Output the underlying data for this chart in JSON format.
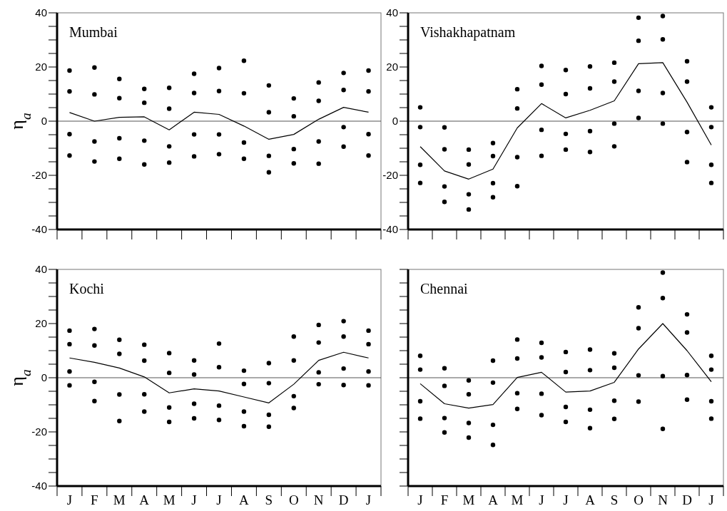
{
  "chart_data": [
    {
      "type": "line",
      "title": "Mumbai",
      "ylabel": "η$_{a}$",
      "tick_labels": "y",
      "categories": [
        null,
        null,
        null,
        null,
        null,
        null,
        null,
        null,
        null,
        null,
        null,
        null,
        null
      ],
      "ylim": [
        -40,
        40
      ],
      "yticks": [
        -40,
        {
          "value": -35,
          "label": null
        },
        {
          "value": -30,
          "label": null
        },
        {
          "value": -25,
          "label": null
        },
        -20,
        {
          "value": -15,
          "label": null
        },
        {
          "value": -10,
          "label": null
        },
        {
          "value": -5,
          "label": null
        },
        0,
        {
          "value": 5,
          "label": null
        },
        {
          "value": 10,
          "label": null
        },
        {
          "value": 15,
          "label": null
        },
        20,
        {
          "value": 25,
          "label": null
        },
        {
          "value": 30,
          "label": null
        },
        {
          "value": 35,
          "label": null
        },
        40
      ],
      "ref_lines": [
        {
          "axis": "y",
          "value": 0,
          "color": "#555555"
        }
      ],
      "series": [
        {
          "color": "#000000",
          "values": [
            3.2,
            0,
            1.4,
            1.6,
            -3.2,
            3.3,
            2.5,
            -1.8,
            -6.7,
            -4.9,
            0.7,
            5.1,
            3.3
          ]
        },
        {
          "type": "scatter",
          "color": "#000000",
          "marker": "circle",
          "values": [
            18.7,
            19.8,
            15.6,
            11.9,
            12.3,
            17.5,
            19.6,
            22.3,
            13.2,
            8.4,
            14.3,
            17.8,
            18.7
          ]
        },
        {
          "type": "scatter",
          "color": "#000000",
          "marker": "circle",
          "values": [
            11,
            9.9,
            8.5,
            6.8,
            4.6,
            10.4,
            11.1,
            10.3,
            3.3,
            1.8,
            7.5,
            11.5,
            11
          ]
        },
        {
          "type": "scatter",
          "color": "#000000",
          "marker": "circle",
          "values": [
            -4.8,
            -7.5,
            -6.3,
            -7.2,
            -9.3,
            -4.9,
            -4.9,
            -7.9,
            -12.8,
            -10.3,
            -7.5,
            -2.2,
            -4.8
          ]
        },
        {
          "type": "scatter",
          "color": "#000000",
          "marker": "circle",
          "values": [
            -12.7,
            -14.9,
            -13.9,
            -16,
            -15.3,
            -13,
            -12.2,
            -13.9,
            -18.9,
            -15.6,
            -15.7,
            -9.4,
            -12.7
          ]
        }
      ]
    },
    {
      "type": "line",
      "title": "Vishakhapatnam",
      "tick_labels": "y",
      "categories": [
        null,
        null,
        null,
        null,
        null,
        null,
        null,
        null,
        null,
        null,
        null,
        null,
        null
      ],
      "ylim": [
        -40,
        40
      ],
      "yticks": [
        -40,
        {
          "value": -35,
          "label": null
        },
        {
          "value": -30,
          "label": null
        },
        {
          "value": -25,
          "label": null
        },
        -20,
        {
          "value": -15,
          "label": null
        },
        {
          "value": -10,
          "label": null
        },
        {
          "value": -5,
          "label": null
        },
        0,
        {
          "value": 5,
          "label": null
        },
        {
          "value": 10,
          "label": null
        },
        {
          "value": 15,
          "label": null
        },
        20,
        {
          "value": 25,
          "label": null
        },
        {
          "value": 30,
          "label": null
        },
        {
          "value": 35,
          "label": null
        },
        40
      ],
      "ref_lines": [
        {
          "axis": "y",
          "value": 0,
          "color": "#555555"
        }
      ],
      "series": [
        {
          "color": "#000000",
          "values": [
            -9.4,
            -18.4,
            -21.4,
            -17.7,
            -2.5,
            6.5,
            1.2,
            4,
            7.5,
            21.2,
            21.6,
            7,
            -8.8
          ]
        },
        {
          "type": "scatter",
          "color": "#000000",
          "marker": "circle",
          "values": [
            5.1,
            -2.3,
            -10.5,
            -8.1,
            11.8,
            20.4,
            18.9,
            20.2,
            21.6,
            38.2,
            38.8,
            22.1,
            5.1
          ]
        },
        {
          "type": "scatter",
          "color": "#000000",
          "marker": "circle",
          "values": [
            -2.2,
            -10.4,
            -16,
            -12.9,
            4.7,
            13.5,
            10,
            12.1,
            14.6,
            29.7,
            30.2,
            14.6,
            -2.2
          ]
        },
        {
          "type": "scatter",
          "color": "#000000",
          "marker": "circle",
          "values": [
            -16.1,
            -24.1,
            -27,
            -22.9,
            -13.3,
            -3.2,
            -4.7,
            -3.7,
            -0.9,
            11.2,
            10.4,
            -4,
            -16.1
          ]
        },
        {
          "type": "scatter",
          "color": "#000000",
          "marker": "circle",
          "values": [
            -22.8,
            -29.8,
            -32.6,
            -28.1,
            -24,
            -12.8,
            -10.5,
            -11.4,
            -9.3,
            1.2,
            -0.9,
            -15.1,
            -22.8
          ]
        }
      ]
    },
    {
      "type": "line",
      "title": "Kochi",
      "ylabel": "η$_{a}$",
      "categories": [
        "J",
        "F",
        "M",
        "A",
        "M",
        "J",
        "J",
        "A",
        "S",
        "O",
        "N",
        "D",
        "J"
      ],
      "ylim": [
        -40,
        40
      ],
      "yticks": [
        -40,
        {
          "value": -35,
          "label": null
        },
        {
          "value": -30,
          "label": null
        },
        {
          "value": -25,
          "label": null
        },
        -20,
        {
          "value": -15,
          "label": null
        },
        {
          "value": -10,
          "label": null
        },
        {
          "value": -5,
          "label": null
        },
        0,
        {
          "value": 5,
          "label": null
        },
        {
          "value": 10,
          "label": null
        },
        {
          "value": 15,
          "label": null
        },
        20,
        {
          "value": 25,
          "label": null
        },
        {
          "value": 30,
          "label": null
        },
        {
          "value": 35,
          "label": null
        },
        40
      ],
      "ref_lines": [
        {
          "axis": "y",
          "value": 0,
          "color": "#555555"
        }
      ],
      "series": [
        {
          "color": "#000000",
          "values": [
            7.3,
            5.7,
            3.6,
            0.3,
            -5.6,
            -4.1,
            -4.9,
            -7.1,
            -9.3,
            -2.4,
            6.4,
            9.4,
            7.3
          ]
        },
        {
          "type": "scatter",
          "color": "#000000",
          "marker": "circle",
          "values": [
            17.4,
            18,
            14,
            12.2,
            9.1,
            6.4,
            12.6,
            2.6,
            5.4,
            15.2,
            19.5,
            20.9,
            17.4
          ]
        },
        {
          "type": "scatter",
          "color": "#000000",
          "marker": "circle",
          "values": [
            12.4,
            11.9,
            8.8,
            6.3,
            1.8,
            1.2,
            3.9,
            -2.3,
            -2,
            6.4,
            13,
            15.2,
            12.4
          ]
        },
        {
          "type": "scatter",
          "color": "#000000",
          "marker": "circle",
          "values": [
            2.3,
            -1.5,
            -6.2,
            -6.1,
            -11,
            -9.6,
            -10.3,
            -12.5,
            -13.7,
            -6.8,
            2,
            3.4,
            2.3
          ]
        },
        {
          "type": "scatter",
          "color": "#000000",
          "marker": "circle",
          "values": [
            -2.8,
            -8.6,
            -16,
            -12.5,
            -16.3,
            -15,
            -15.6,
            -17.9,
            -18.1,
            -11.2,
            -2.4,
            -2.7,
            -2.8
          ]
        }
      ]
    },
    {
      "type": "line",
      "title": "Chennai",
      "tick_labels": "x",
      "categories": [
        "J",
        "F",
        "M",
        "A",
        "M",
        "J",
        "J",
        "A",
        "S",
        "O",
        "N",
        "D",
        "J"
      ],
      "ylim": [
        -40,
        40
      ],
      "yticks": [
        -40,
        {
          "value": -35,
          "label": null
        },
        {
          "value": -30,
          "label": null
        },
        {
          "value": -25,
          "label": null
        },
        -20,
        {
          "value": -15,
          "label": null
        },
        {
          "value": -10,
          "label": null
        },
        {
          "value": -5,
          "label": null
        },
        0,
        {
          "value": 5,
          "label": null
        },
        {
          "value": 10,
          "label": null
        },
        {
          "value": 15,
          "label": null
        },
        20,
        {
          "value": 25,
          "label": null
        },
        {
          "value": 30,
          "label": null
        },
        {
          "value": 35,
          "label": null
        },
        40
      ],
      "ref_lines": [
        {
          "axis": "y",
          "value": 0,
          "color": "#555555"
        }
      ],
      "series": [
        {
          "color": "#000000",
          "values": [
            -2.2,
            -9.6,
            -11.2,
            -9.9,
            0.1,
            2,
            -5.3,
            -4.9,
            -1.7,
            10.6,
            20,
            10,
            -1.5
          ]
        },
        {
          "type": "scatter",
          "color": "#000000",
          "marker": "circle",
          "values": [
            8.1,
            3.5,
            -1,
            6.3,
            14.1,
            12.9,
            9.5,
            10.4,
            9,
            26,
            38.8,
            23.4,
            8.1
          ]
        },
        {
          "type": "scatter",
          "color": "#000000",
          "marker": "circle",
          "values": [
            3,
            -3,
            -6.1,
            -1.8,
            7.1,
            7.5,
            2.1,
            2.8,
            3.7,
            18.3,
            29.4,
            16.7,
            3
          ]
        },
        {
          "type": "scatter",
          "color": "#000000",
          "marker": "circle",
          "values": [
            -8.7,
            -14.9,
            -16.7,
            -17.4,
            -5.7,
            -5.9,
            -10.8,
            -11.8,
            -8.5,
            0.9,
            0.6,
            1,
            -8.7
          ]
        },
        {
          "type": "scatter",
          "color": "#000000",
          "marker": "circle",
          "values": [
            -15.1,
            -20.2,
            -22.1,
            -24.8,
            -11.5,
            -13.8,
            -16.3,
            -18.6,
            -15.2,
            -8.8,
            -18.9,
            -8.1,
            -15.1
          ]
        }
      ]
    }
  ]
}
